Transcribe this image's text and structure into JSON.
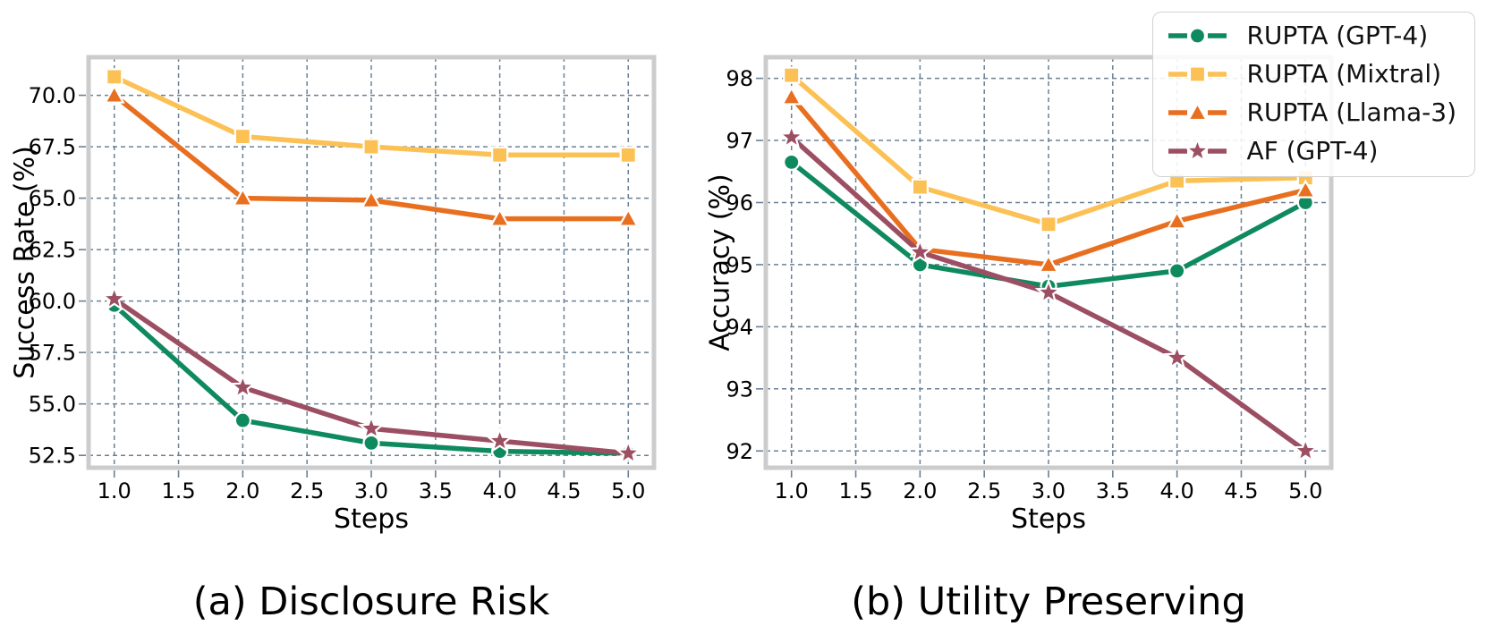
{
  "figure": {
    "captions": [
      "(a) Disclosure Risk",
      "(b) Utility Preserving"
    ]
  },
  "legend": {
    "position": "top-right",
    "items": [
      {
        "label": "RUPTA (GPT-4)",
        "color": "#0f8a5f",
        "marker": "circle"
      },
      {
        "label": "RUPTA (Mixtral)",
        "color": "#fcc155",
        "marker": "square"
      },
      {
        "label": "RUPTA (Llama-3)",
        "color": "#e86f1f",
        "marker": "triangle"
      },
      {
        "label": "AF (GPT-4)",
        "color": "#9c4f63",
        "marker": "star"
      }
    ]
  },
  "colors": {
    "background": "#ffffff",
    "grid": "#6b8094",
    "spine": "#cccccc",
    "marker_edge": "#ffffff",
    "text": "#000000"
  },
  "chart_data": [
    {
      "type": "line",
      "title": "(a) Disclosure Risk",
      "xlabel": "Steps",
      "ylabel": "Success Rate (%)",
      "grid": true,
      "x": [
        1,
        2,
        3,
        4,
        5
      ],
      "xlim": [
        0.8,
        5.2
      ],
      "ylim": [
        51.9,
        71.85
      ],
      "xticks": [
        1.0,
        1.5,
        2.0,
        2.5,
        3.0,
        3.5,
        4.0,
        4.5,
        5.0
      ],
      "xtick_labels": [
        "1.0",
        "1.5",
        "2.0",
        "2.5",
        "3.0",
        "3.5",
        "4.0",
        "4.5",
        "5.0"
      ],
      "yticks": [
        52.5,
        55.0,
        57.5,
        60.0,
        62.5,
        65.0,
        67.5,
        70.0
      ],
      "ytick_labels": [
        "52.5",
        "55.0",
        "57.5",
        "60.0",
        "62.5",
        "65.0",
        "67.5",
        "70.0"
      ],
      "series": [
        {
          "name": "RUPTA (GPT-4)",
          "marker": "circle",
          "color": "#0f8a5f",
          "values": [
            59.8,
            54.2,
            53.1,
            52.7,
            52.6
          ]
        },
        {
          "name": "RUPTA (Mixtral)",
          "marker": "square",
          "color": "#fcc155",
          "values": [
            70.9,
            68.0,
            67.5,
            67.1,
            67.1
          ]
        },
        {
          "name": "RUPTA (Llama-3)",
          "marker": "triangle",
          "color": "#e86f1f",
          "values": [
            70.0,
            65.0,
            64.9,
            64.0,
            64.0
          ]
        },
        {
          "name": "AF (GPT-4)",
          "marker": "star",
          "color": "#9c4f63",
          "values": [
            60.1,
            55.8,
            53.8,
            53.2,
            52.6
          ]
        }
      ]
    },
    {
      "type": "line",
      "title": "(b) Utility Preserving",
      "xlabel": "Steps",
      "ylabel": "Accuracy (%)",
      "grid": true,
      "x": [
        1,
        2,
        3,
        4,
        5
      ],
      "xlim": [
        0.8,
        5.2
      ],
      "ylim": [
        91.73,
        98.34
      ],
      "xticks": [
        1.0,
        1.5,
        2.0,
        2.5,
        3.0,
        3.5,
        4.0,
        4.5,
        5.0
      ],
      "xtick_labels": [
        "1.0",
        "1.5",
        "2.0",
        "2.5",
        "3.0",
        "3.5",
        "4.0",
        "4.5",
        "5.0"
      ],
      "yticks": [
        92,
        93,
        94,
        95,
        96,
        97,
        98
      ],
      "ytick_labels": [
        "92",
        "93",
        "94",
        "95",
        "96",
        "97",
        "98"
      ],
      "series": [
        {
          "name": "RUPTA (GPT-4)",
          "marker": "circle",
          "color": "#0f8a5f",
          "values": [
            96.65,
            95.0,
            94.65,
            94.9,
            96.0
          ]
        },
        {
          "name": "RUPTA (Mixtral)",
          "marker": "square",
          "color": "#fcc155",
          "values": [
            98.05,
            96.25,
            95.65,
            96.35,
            96.4
          ]
        },
        {
          "name": "RUPTA (Llama-3)",
          "marker": "triangle",
          "color": "#e86f1f",
          "values": [
            97.7,
            95.25,
            95.0,
            95.7,
            96.2
          ]
        },
        {
          "name": "AF (GPT-4)",
          "marker": "star",
          "color": "#9c4f63",
          "values": [
            97.05,
            95.2,
            94.55,
            93.5,
            92.0
          ]
        }
      ]
    }
  ]
}
